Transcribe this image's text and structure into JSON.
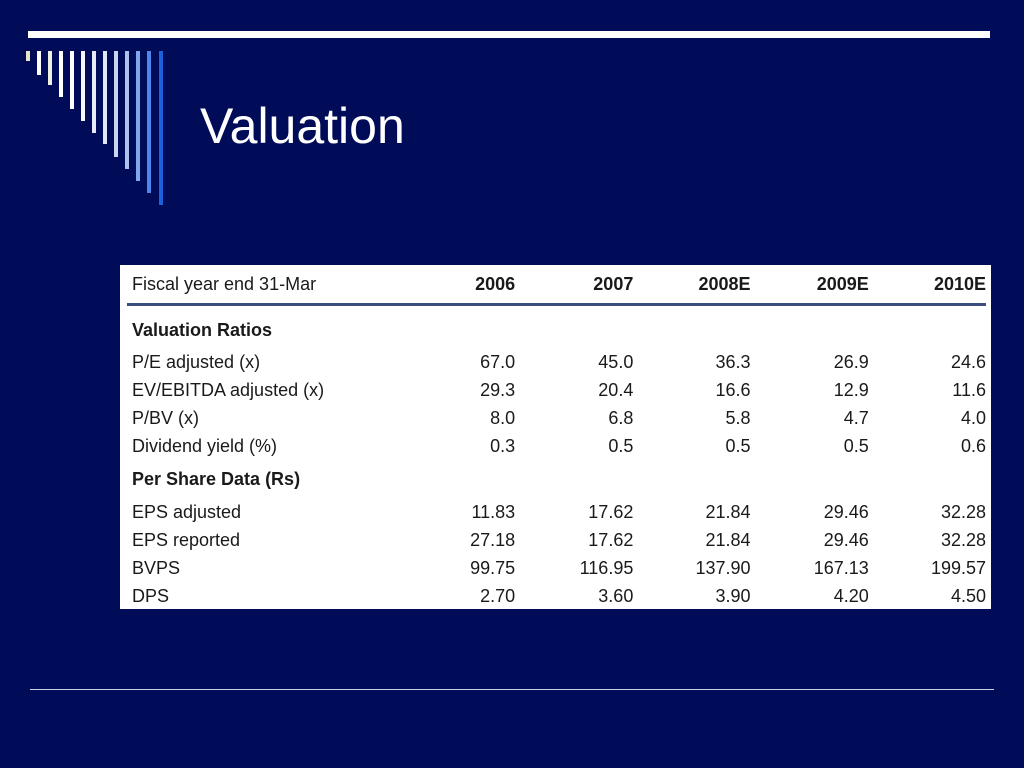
{
  "slide": {
    "title": "Valuation",
    "colors": {
      "background": "#000c57",
      "accent_lines": "#ffffff",
      "stripes": [
        "#e8e4c8",
        "#ffffff",
        "#dfe6f5",
        "#c8d6f0",
        "#a9c2ee",
        "#7fa7ee",
        "#4f86ec",
        "#1e5fe0"
      ]
    }
  },
  "table": {
    "header": [
      "Fiscal year end 31-Mar",
      "2006",
      "2007",
      "2008E",
      "2009E",
      "2010E"
    ],
    "sections": [
      {
        "title": "Valuation Ratios",
        "rows": [
          [
            "P/E adjusted (x)",
            "67.0",
            "45.0",
            "36.3",
            "26.9",
            "24.6"
          ],
          [
            "EV/EBITDA adjusted (x)",
            "29.3",
            "20.4",
            "16.6",
            "12.9",
            "11.6"
          ],
          [
            "P/BV (x)",
            "8.0",
            "6.8",
            "5.8",
            "4.7",
            "4.0"
          ],
          [
            "Dividend yield (%)",
            "0.3",
            "0.5",
            "0.5",
            "0.5",
            "0.6"
          ]
        ]
      },
      {
        "title": "Per Share Data (Rs)",
        "rows": [
          [
            "EPS adjusted",
            "11.83",
            "17.62",
            "21.84",
            "29.46",
            "32.28"
          ],
          [
            "EPS reported",
            "27.18",
            "17.62",
            "21.84",
            "29.46",
            "32.28"
          ],
          [
            "BVPS",
            "99.75",
            "116.95",
            "137.90",
            "167.13",
            "199.57"
          ],
          [
            "DPS",
            "2.70",
            "3.60",
            "3.90",
            "4.20",
            "4.50"
          ]
        ]
      }
    ]
  }
}
